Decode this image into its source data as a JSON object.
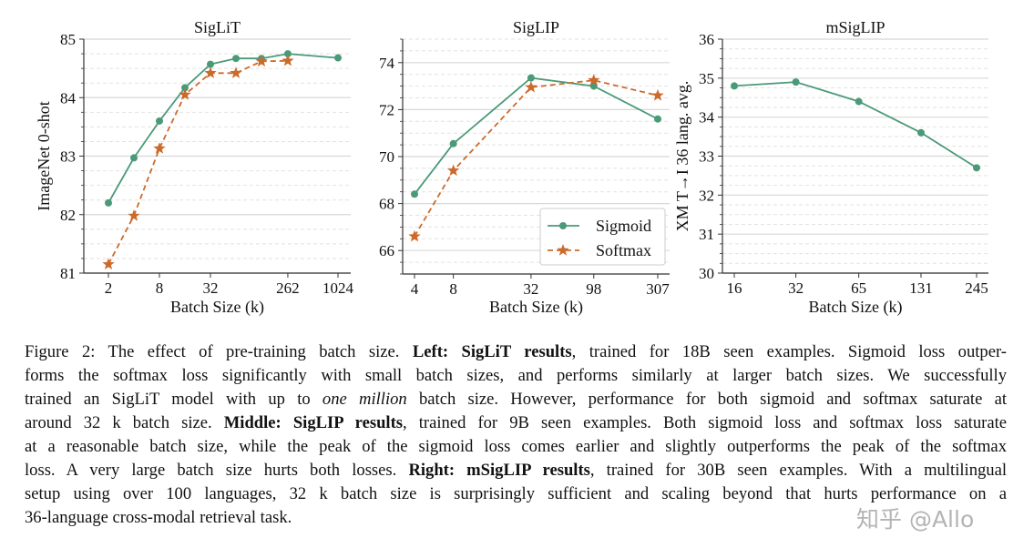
{
  "chart_data": [
    {
      "type": "line",
      "title": "SigLiT",
      "xlabel": "Batch Size (k)",
      "ylabel": "ImageNet 0-shot",
      "x_scale": "log2",
      "xticks": [
        2,
        8,
        32,
        262,
        1024
      ],
      "ylim": [
        81,
        85
      ],
      "yticks": [
        81,
        82,
        83,
        84,
        85
      ],
      "grid": true,
      "series": [
        {
          "name": "Sigmoid",
          "color": "#4a9a78",
          "marker": "circle",
          "dash": false,
          "x": [
            2,
            4,
            8,
            16,
            32,
            64,
            128,
            262,
            1024
          ],
          "y": [
            82.2,
            82.97,
            83.6,
            84.17,
            84.57,
            84.67,
            84.67,
            84.75,
            84.68
          ]
        },
        {
          "name": "Softmax",
          "color": "#cc6a2c",
          "marker": "star",
          "dash": true,
          "x": [
            2,
            4,
            8,
            16,
            32,
            64,
            128,
            262
          ],
          "y": [
            81.15,
            81.98,
            83.13,
            84.05,
            84.42,
            84.42,
            84.62,
            84.63
          ]
        }
      ]
    },
    {
      "type": "line",
      "title": "SigLIP",
      "xlabel": "Batch Size (k)",
      "ylabel": "",
      "x_scale": "log2",
      "xticks": [
        4,
        8,
        32,
        98,
        307
      ],
      "ylim": [
        65,
        75
      ],
      "yticks": [
        66,
        68,
        70,
        72,
        74
      ],
      "grid": true,
      "legend": "lower-right",
      "series": [
        {
          "name": "Sigmoid",
          "color": "#4a9a78",
          "marker": "circle",
          "dash": false,
          "x": [
            4,
            8,
            32,
            98,
            307
          ],
          "y": [
            68.4,
            70.55,
            73.35,
            73.0,
            71.6
          ]
        },
        {
          "name": "Softmax",
          "color": "#cc6a2c",
          "marker": "star",
          "dash": true,
          "x": [
            4,
            8,
            32,
            98,
            307
          ],
          "y": [
            66.6,
            69.4,
            72.95,
            73.25,
            72.6
          ]
        }
      ]
    },
    {
      "type": "line",
      "title": "mSigLIP",
      "xlabel": "Batch Size (k)",
      "ylabel": "XM T→I 36 lang. avg.",
      "x_scale": "log2",
      "xticks": [
        16,
        32,
        65,
        131,
        245
      ],
      "ylim": [
        30,
        36
      ],
      "yticks": [
        30,
        31,
        32,
        33,
        34,
        35,
        36
      ],
      "grid": true,
      "series": [
        {
          "color": "#4a9a78",
          "marker": "circle",
          "dash": false,
          "x": [
            16,
            32,
            65,
            131,
            245
          ],
          "y": [
            34.8,
            34.9,
            34.4,
            33.6,
            32.7
          ]
        }
      ]
    }
  ],
  "caption": [
    [
      {
        "t": "Figure 2: The effect of pre-training batch size. "
      },
      {
        "t": "Left: SigLiT results",
        "s": "b"
      },
      {
        "t": ", trained for 18B seen examples. Sigmoid loss outper-"
      }
    ],
    [
      {
        "t": "forms the softmax loss significantly with small batch sizes, and performs similarly at larger batch sizes. We successfully"
      }
    ],
    [
      {
        "t": "trained an SigLiT model with up to "
      },
      {
        "t": "one million",
        "s": "i"
      },
      {
        "t": " batch size. However, performance for both sigmoid and softmax saturate at"
      }
    ],
    [
      {
        "t": "around 32 k batch size. "
      },
      {
        "t": "Middle: SigLIP results",
        "s": "b"
      },
      {
        "t": ", trained for 9B seen examples. Both sigmoid loss and softmax loss saturate"
      }
    ],
    [
      {
        "t": "at a reasonable batch size, while the peak of the sigmoid loss comes earlier and slightly outperforms the peak of the softmax"
      }
    ],
    [
      {
        "t": "loss. A very large batch size hurts both losses. "
      },
      {
        "t": "Right: mSigLIP results",
        "s": "b"
      },
      {
        "t": ", trained for 30B seen examples. With a multilingual"
      }
    ],
    [
      {
        "t": "setup using over 100 languages, 32 k batch size is surprisingly sufficient and scaling beyond that hurts performance on a"
      }
    ],
    [
      {
        "t": "36-language cross-modal retrieval task."
      }
    ]
  ],
  "watermark": "知乎 @Allo"
}
